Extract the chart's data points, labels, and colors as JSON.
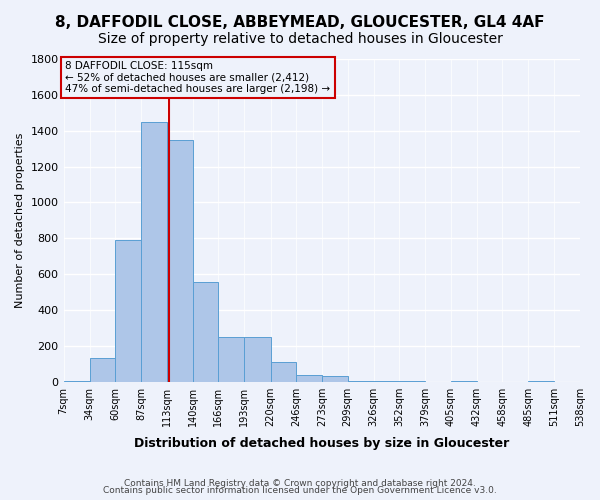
{
  "title": "8, DAFFODIL CLOSE, ABBEYMEAD, GLOUCESTER, GL4 4AF",
  "subtitle": "Size of property relative to detached houses in Gloucester",
  "xlabel": "Distribution of detached houses by size in Gloucester",
  "ylabel": "Number of detached properties",
  "bar_edges": [
    7,
    34,
    60,
    87,
    113,
    140,
    166,
    193,
    220,
    246,
    273,
    299,
    326,
    352,
    379,
    405,
    432,
    458,
    485,
    511,
    538
  ],
  "bar_heights": [
    5,
    130,
    790,
    1450,
    1350,
    555,
    250,
    250,
    110,
    35,
    30,
    5,
    5,
    5,
    0,
    5,
    0,
    0,
    5,
    0
  ],
  "bar_color": "#aec6e8",
  "bar_edge_color": "#5a9fd4",
  "property_line_x": 115,
  "annotation_title": "8 DAFFODIL CLOSE: 115sqm",
  "annotation_line1": "← 52% of detached houses are smaller (2,412)",
  "annotation_line2": "47% of semi-detached houses are larger (2,198) →",
  "annotation_box_color": "#cc0000",
  "ylim": [
    0,
    1800
  ],
  "yticks": [
    0,
    200,
    400,
    600,
    800,
    1000,
    1200,
    1400,
    1600,
    1800
  ],
  "x_tick_labels": [
    "7sqm",
    "34sqm",
    "60sqm",
    "87sqm",
    "113sqm",
    "140sqm",
    "166sqm",
    "193sqm",
    "220sqm",
    "246sqm",
    "273sqm",
    "299sqm",
    "326sqm",
    "352sqm",
    "379sqm",
    "405sqm",
    "432sqm",
    "458sqm",
    "485sqm",
    "511sqm",
    "538sqm"
  ],
  "footer1": "Contains HM Land Registry data © Crown copyright and database right 2024.",
  "footer2": "Contains public sector information licensed under the Open Government Licence v3.0.",
  "bg_color": "#eef2fb",
  "grid_color": "#ffffff",
  "title_fontsize": 11,
  "subtitle_fontsize": 10
}
